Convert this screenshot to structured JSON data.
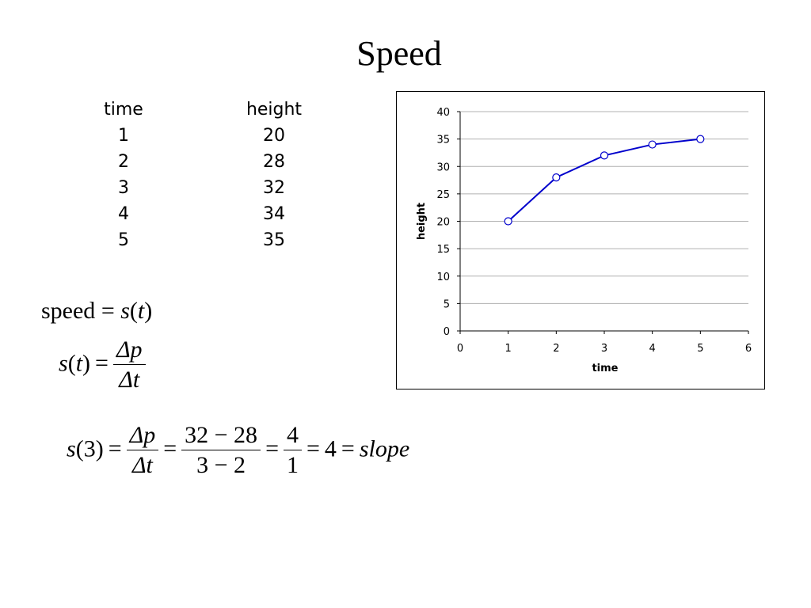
{
  "slide": {
    "title": "Speed"
  },
  "table": {
    "headers": [
      "time",
      "height"
    ],
    "rows": [
      [
        "1",
        "20"
      ],
      [
        "2",
        "28"
      ],
      [
        "3",
        "32"
      ],
      [
        "4",
        "34"
      ],
      [
        "5",
        "35"
      ]
    ]
  },
  "formulas": {
    "speed_word": "speed",
    "eq": "=",
    "s_of_t": "s",
    "t": "t",
    "delta_p": "Δp",
    "delta_t": "Δt",
    "s3_arg": "3",
    "num_32_28": "32 − 28",
    "den_3_2": "3 − 2",
    "num_4": "4",
    "den_1": "1",
    "result": "4",
    "slope": "slope"
  },
  "chart_data": {
    "type": "line",
    "x": [
      1,
      2,
      3,
      4,
      5
    ],
    "series": [
      {
        "values": [
          20,
          28,
          32,
          34,
          35
        ],
        "color": "#0000cc"
      }
    ],
    "xlabel": "time",
    "ylabel": "height",
    "xlim": [
      0,
      6
    ],
    "ylim": [
      0,
      40
    ],
    "xticks": [
      0,
      1,
      2,
      3,
      4,
      5,
      6
    ],
    "yticks": [
      0,
      5,
      10,
      15,
      20,
      25,
      30,
      35,
      40
    ],
    "grid": "horizontal",
    "marker": "open-circle"
  }
}
